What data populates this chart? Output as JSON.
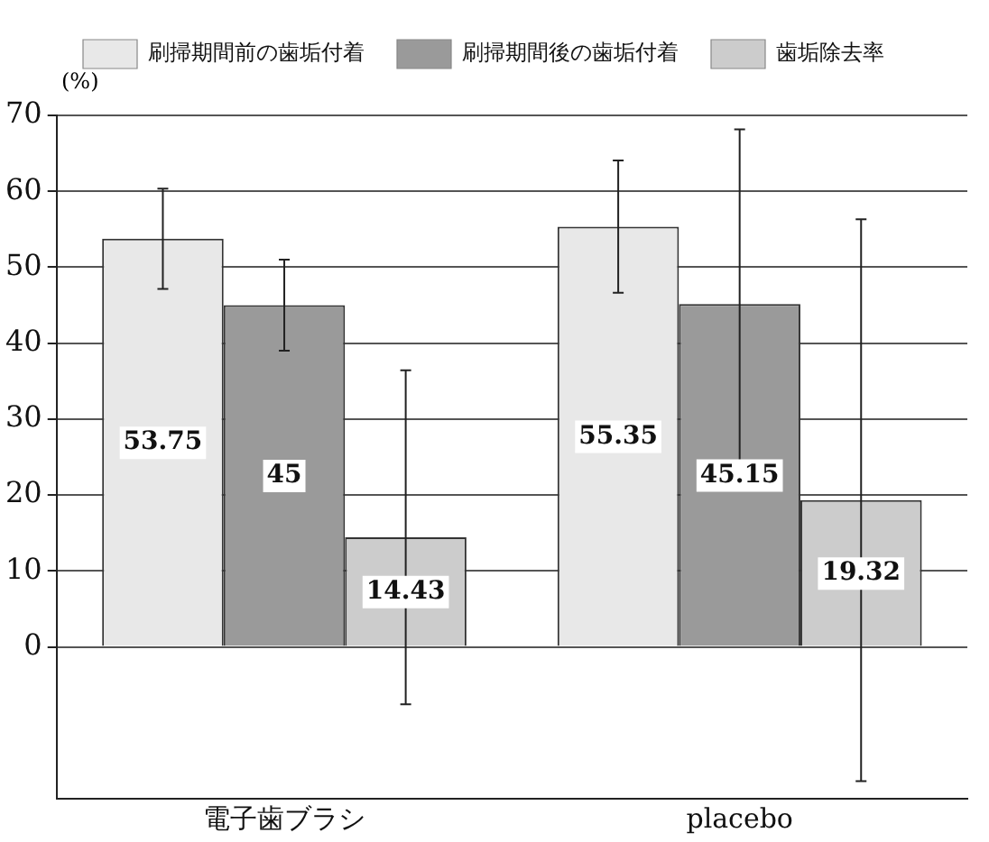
{
  "chart_data": {
    "type": "bar",
    "ylabel": "(%)",
    "categories": [
      "電子歯ブラシ",
      "placebo"
    ],
    "series": [
      {
        "name": "刷掃期間前の歯垢付着",
        "color": "#e8e8e8",
        "values": [
          53.75,
          55.35
        ],
        "errors": [
          6.6,
          8.7
        ]
      },
      {
        "name": "刷掃期間後の歯垢付着",
        "color": "#9a9a9a",
        "values": [
          45,
          45.15
        ],
        "errors": [
          6,
          23
        ]
      },
      {
        "name": "歯垢除去率",
        "color": "#cccccc",
        "values": [
          14.43,
          19.32
        ],
        "errors": [
          22,
          37
        ]
      }
    ],
    "ylim": [
      -20,
      70
    ],
    "yticks": [
      0,
      10,
      20,
      30,
      40,
      50,
      60,
      70
    ],
    "grid": "y",
    "legend": "top",
    "data_labels": true
  }
}
